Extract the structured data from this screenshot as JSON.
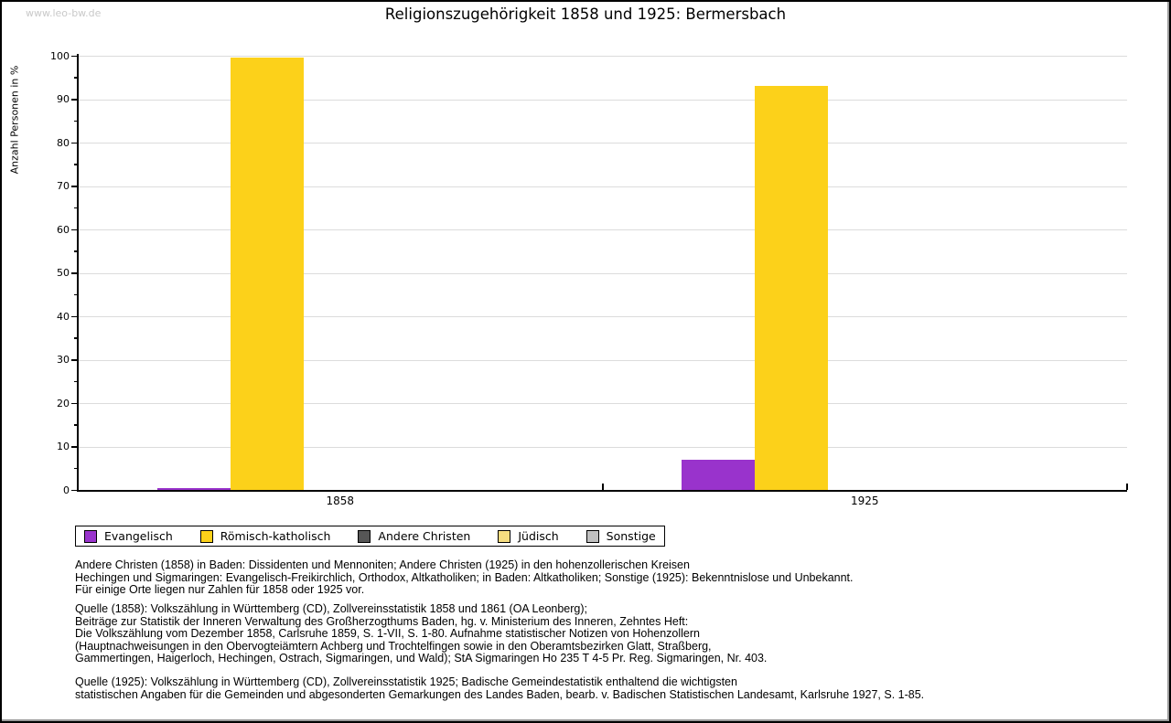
{
  "watermark": "www.leo-bw.de",
  "title": "Religionszugehörigkeit 1858 und 1925: Bermersbach",
  "chart_data": {
    "type": "bar",
    "title": "Religionszugehörigkeit 1858 und 1925: Bermersbach",
    "xlabel": "",
    "ylabel": "Anzahl Personen in %",
    "categories": [
      "1858",
      "1925"
    ],
    "series": [
      {
        "name": "Evangelisch",
        "color": "#9933cc",
        "values": [
          0.4,
          6.9
        ]
      },
      {
        "name": "Römisch-katholisch",
        "color": "#fcd11a",
        "values": [
          99.6,
          93.1
        ]
      },
      {
        "name": "Andere Christen",
        "color": "#565656",
        "values": [
          0,
          0
        ]
      },
      {
        "name": "Jüdisch",
        "color": "#f6dd80",
        "values": [
          0,
          0
        ]
      },
      {
        "name": "Sonstige",
        "color": "#c0c0c0",
        "values": [
          0,
          0
        ]
      }
    ],
    "ylim": [
      0,
      100
    ],
    "ytick_step": 10,
    "ytick_minor_step": 5,
    "grid": "horizontal",
    "legend_position": "bottom"
  },
  "footnotes": {
    "para1": [
      "Andere Christen (1858) in Baden: Dissidenten und Mennoniten; Andere Christen (1925) in den hohenzollerischen Kreisen",
      "Hechingen und Sigmaringen: Evangelisch-Freikirchlich, Orthodox, Altkatholiken; in Baden: Altkatholiken; Sonstige (1925): Bekenntnislose und Unbekannt.",
      "Für einige Orte liegen nur Zahlen für 1858 oder 1925 vor."
    ],
    "para2": [
      "Quelle (1858): Volkszählung in Württemberg (CD), Zollvereinsstatistik 1858 und 1861 (OA Leonberg);",
      "Beiträge zur Statistik der Inneren Verwaltung des Großherzogthums Baden, hg. v. Ministerium des Inneren, Zehntes Heft:",
      "Die Volkszählung vom Dezember 1858, Carlsruhe 1859, S. 1-VII, S. 1-80. Aufnahme statistischer Notizen von Hohenzollern",
      "(Hauptnachweisungen in den Obervogteiämtern Achberg und Trochtelfingen sowie in den Oberamtsbezirken Glatt, Straßberg,",
      "Gammertingen, Haigerloch, Hechingen, Ostrach, Sigmaringen, und Wald); StA Sigmaringen Ho 235 T 4-5 Pr. Reg. Sigmaringen, Nr. 403."
    ],
    "para3": [
      "Quelle (1925): Volkszählung in Württemberg (CD), Zollvereinsstatistik 1925; Badische Gemeindestatistik enthaltend die wichtigsten",
      "statistischen Angaben für die Gemeinden und abgesonderten Gemarkungen des Landes Baden, bearb. v. Badischen Statistischen Landesamt, Karlsruhe 1927, S. 1-85."
    ]
  }
}
